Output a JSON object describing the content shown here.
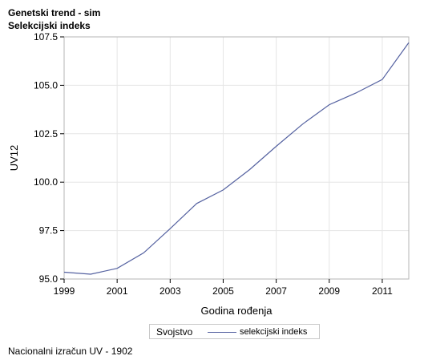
{
  "chart_data": {
    "type": "line",
    "title": "Genetski trend - sim",
    "subtitle": "Selekcijski indeks",
    "xlabel": "Godina rođenja",
    "ylabel": "UV12",
    "xlim": [
      1999,
      2012
    ],
    "ylim": [
      95.0,
      107.5
    ],
    "x_ticks": [
      1999,
      2001,
      2003,
      2005,
      2007,
      2009,
      2011
    ],
    "y_ticks": [
      95.0,
      97.5,
      100.0,
      102.5,
      105.0,
      107.5
    ],
    "x_tick_labels": [
      "1999",
      "2001",
      "2003",
      "2005",
      "2007",
      "2009",
      "2011"
    ],
    "y_tick_labels": [
      "95.0",
      "97.5",
      "100.0",
      "102.5",
      "105.0",
      "107.5"
    ],
    "grid": true,
    "legend_position": "bottom",
    "legend_title": "Svojstvo",
    "line_color": "#5461a0",
    "series": [
      {
        "name": "selekcijski indeks",
        "x": [
          1999,
          2000,
          2001,
          2002,
          2003,
          2004,
          2005,
          2006,
          2007,
          2008,
          2009,
          2010,
          2011,
          2012
        ],
        "y": [
          95.35,
          95.25,
          95.55,
          96.35,
          97.6,
          98.9,
          99.6,
          100.65,
          101.85,
          103.0,
          104.0,
          104.6,
          105.3,
          107.2
        ]
      }
    ]
  },
  "footnote": "Nacionalni izračun UV - 1902"
}
